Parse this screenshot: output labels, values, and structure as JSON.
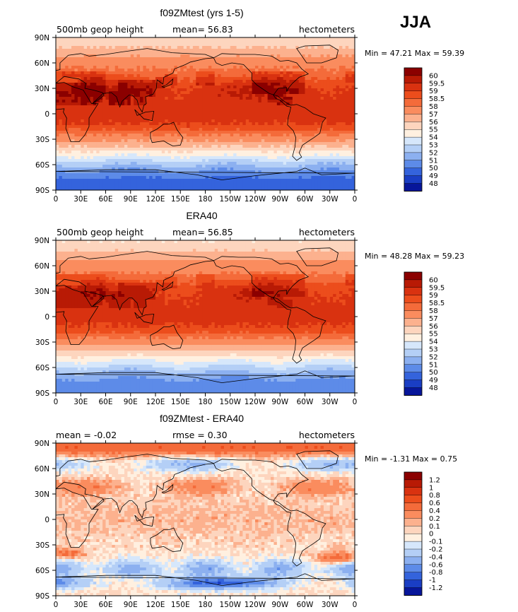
{
  "season": "JJA",
  "chart_data": [
    {
      "type": "heatmap",
      "title": "f09ZMtest (yrs 1-5)",
      "left_label": "500mb geop height",
      "center_label": "mean=   56.83",
      "right_label": "hectometers",
      "minmax_label": "Min =   47.21  Max =   59.39",
      "min": 47.21,
      "max": 59.39,
      "mean": 56.83,
      "xlim": [
        0,
        360
      ],
      "ylim": [
        -90,
        90
      ],
      "x_ticks": [
        "0",
        "30E",
        "60E",
        "90E",
        "120E",
        "150E",
        "180",
        "150W",
        "120W",
        "90W",
        "60W",
        "30W",
        "0"
      ],
      "y_ticks": [
        "90N",
        "60N",
        "30N",
        "0",
        "30S",
        "60S",
        "90S"
      ],
      "colorbar": {
        "labels": [
          "60",
          "59.5",
          "59",
          "58.5",
          "58",
          "57",
          "56",
          "55",
          "54",
          "53",
          "52",
          "51",
          "50",
          "49",
          "48"
        ],
        "colors": [
          "#8b0000",
          "#b81a05",
          "#d93210",
          "#ec4d1c",
          "#f46b3a",
          "#fa8c5e",
          "#fcb18e",
          "#fdd5be",
          "#fff0e0",
          "#d6e7fb",
          "#b4cff6",
          "#8cb0f0",
          "#5d8be8",
          "#3463dc",
          "#1a3ec4",
          "#07169a"
        ]
      },
      "field": {
        "kind": "absolute",
        "mean": 56.83,
        "eqAmp": 2.4,
        "nhShift": 0.9,
        "shAmp": 10.0,
        "landAmp": 0.7,
        "noise": 0.35,
        "seed": 11
      }
    },
    {
      "type": "heatmap",
      "title": "ERA40",
      "left_label": "500mb geop height",
      "center_label": "mean=   56.85",
      "right_label": "hectometers",
      "minmax_label": "Min =   48.28  Max =   59.23",
      "min": 48.28,
      "max": 59.23,
      "mean": 56.85,
      "xlim": [
        0,
        360
      ],
      "ylim": [
        -90,
        90
      ],
      "x_ticks": [
        "0",
        "30E",
        "60E",
        "90E",
        "120E",
        "150E",
        "180",
        "150W",
        "120W",
        "90W",
        "60W",
        "30W",
        "0"
      ],
      "y_ticks": [
        "90N",
        "60N",
        "30N",
        "0",
        "30S",
        "60S",
        "90S"
      ],
      "colorbar": {
        "labels": [
          "60",
          "59.5",
          "59",
          "58.5",
          "58",
          "57",
          "56",
          "55",
          "54",
          "53",
          "52",
          "51",
          "50",
          "49",
          "48"
        ],
        "colors": [
          "#8b0000",
          "#b81a05",
          "#d93210",
          "#ec4d1c",
          "#f46b3a",
          "#fa8c5e",
          "#fcb18e",
          "#fdd5be",
          "#fff0e0",
          "#d6e7fb",
          "#b4cff6",
          "#8cb0f0",
          "#5d8be8",
          "#3463dc",
          "#1a3ec4",
          "#07169a"
        ]
      },
      "field": {
        "kind": "absolute",
        "mean": 56.85,
        "eqAmp": 2.3,
        "nhShift": 0.9,
        "shAmp": 9.0,
        "landAmp": 0.5,
        "noise": 0.25,
        "seed": 23
      }
    },
    {
      "type": "heatmap",
      "title": "f09ZMtest - ERA40",
      "left_label": "mean =   -0.02",
      "center_label": "rmse =    0.30",
      "right_label": "hectometers",
      "minmax_label": "Min =   -1.31  Max =    0.75",
      "min": -1.31,
      "max": 0.75,
      "mean": -0.02,
      "rmse": 0.3,
      "xlim": [
        0,
        360
      ],
      "ylim": [
        -90,
        90
      ],
      "x_ticks": [
        "0",
        "30E",
        "60E",
        "90E",
        "120E",
        "150E",
        "180",
        "150W",
        "120W",
        "90W",
        "60W",
        "30W",
        "0"
      ],
      "y_ticks": [
        "90N",
        "60N",
        "30N",
        "0",
        "30S",
        "60S",
        "90S"
      ],
      "colorbar": {
        "labels": [
          "1.2",
          "1",
          "0.8",
          "0.6",
          "0.4",
          "0.2",
          "0.1",
          "0",
          "-0.1",
          "-0.2",
          "-0.4",
          "-0.6",
          "-0.8",
          "-1",
          "-1.2"
        ],
        "colors": [
          "#8b0000",
          "#b81a05",
          "#d93210",
          "#ec4d1c",
          "#f46b3a",
          "#fa8c5e",
          "#fcb18e",
          "#fdd5be",
          "#fff0e0",
          "#d6e7fb",
          "#b4cff6",
          "#8cb0f0",
          "#5d8be8",
          "#3463dc",
          "#1a3ec4",
          "#07169a"
        ]
      },
      "field": {
        "kind": "diff",
        "seed": 37
      }
    }
  ]
}
